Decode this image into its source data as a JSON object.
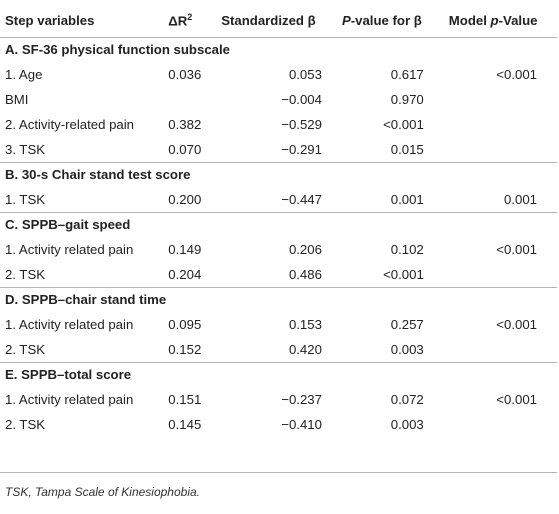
{
  "header": {
    "step_variables": "Step variables",
    "delta_r2_prefix": "ΔR",
    "delta_r2_sup": "2",
    "std_beta": "Standardized β",
    "pvalue_italic": "P",
    "pvalue_rest": "-value for β",
    "model_prefix": "Model ",
    "model_italic": "p",
    "model_rest": "-Value"
  },
  "sections": [
    {
      "title": "A. SF-36 physical function subscale",
      "rows": [
        {
          "variable": "1. Age",
          "delta_r2": "0.036",
          "beta": "0.053",
          "p_beta": "0.617",
          "model_p": "<0.001"
        },
        {
          "variable": "BMI",
          "delta_r2": "",
          "beta": "−0.004",
          "p_beta": "0.970",
          "model_p": ""
        },
        {
          "variable": "2. Activity-related pain",
          "delta_r2": "0.382",
          "beta": "−0.529",
          "p_beta": "<0.001",
          "model_p": ""
        },
        {
          "variable": "3. TSK",
          "delta_r2": "0.070",
          "beta": "−0.291",
          "p_beta": "0.015",
          "model_p": ""
        }
      ]
    },
    {
      "title": "B. 30-s Chair stand test score",
      "rows": [
        {
          "variable": "1. TSK",
          "delta_r2": "0.200",
          "beta": "−0.447",
          "p_beta": "0.001",
          "model_p": "0.001"
        }
      ]
    },
    {
      "title": "C. SPPB–gait speed",
      "rows": [
        {
          "variable": "1. Activity related pain",
          "delta_r2": "0.149",
          "beta": "0.206",
          "p_beta": "0.102",
          "model_p": "<0.001"
        },
        {
          "variable": "2. TSK",
          "delta_r2": "0.204",
          "beta": "0.486",
          "p_beta": "<0.001",
          "model_p": ""
        }
      ]
    },
    {
      "title": "D. SPPB–chair stand time",
      "rows": [
        {
          "variable": "1. Activity related pain",
          "delta_r2": "0.095",
          "beta": "0.153",
          "p_beta": "0.257",
          "model_p": "<0.001"
        },
        {
          "variable": "2. TSK",
          "delta_r2": "0.152",
          "beta": "0.420",
          "p_beta": "0.003",
          "model_p": ""
        }
      ]
    },
    {
      "title": "E. SPPB–total score",
      "rows": [
        {
          "variable": "1. Activity related pain",
          "delta_r2": "0.151",
          "beta": "−0.237",
          "p_beta": "0.072",
          "model_p": "<0.001"
        },
        {
          "variable": "2. TSK",
          "delta_r2": "0.145",
          "beta": "−0.410",
          "p_beta": "0.003",
          "model_p": ""
        }
      ]
    }
  ],
  "footnote": "TSK, Tampa Scale of Kinesiophobia."
}
